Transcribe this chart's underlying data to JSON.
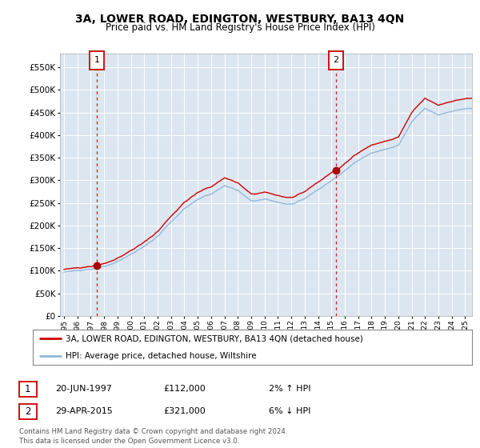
{
  "title": "3A, LOWER ROAD, EDINGTON, WESTBURY, BA13 4QN",
  "subtitle": "Price paid vs. HM Land Registry's House Price Index (HPI)",
  "plot_bg_color": "#dce6f1",
  "sale1_year": 1997.47,
  "sale1_price": 112000,
  "sale2_year": 2015.32,
  "sale2_price": 321000,
  "hpi_line_color": "#92b8d8",
  "price_line_color": "#cc0000",
  "marker_color": "#aa0000",
  "dashed_line_color": "#cc0000",
  "ylim": [
    0,
    580000
  ],
  "yticks": [
    0,
    50000,
    100000,
    150000,
    200000,
    250000,
    300000,
    350000,
    400000,
    450000,
    500000,
    550000
  ],
  "xlim_start": 1994.7,
  "xlim_end": 2025.5,
  "legend1": "3A, LOWER ROAD, EDINGTON, WESTBURY, BA13 4QN (detached house)",
  "legend2": "HPI: Average price, detached house, Wiltshire",
  "footer": "Contains HM Land Registry data © Crown copyright and database right 2024.\nThis data is licensed under the Open Government Licence v3.0.",
  "annotation1_date": "20-JUN-1997",
  "annotation1_price": "£112,000",
  "annotation1_hpi": "2% ↑ HPI",
  "annotation2_date": "29-APR-2015",
  "annotation2_price": "£321,000",
  "annotation2_hpi": "6% ↓ HPI"
}
